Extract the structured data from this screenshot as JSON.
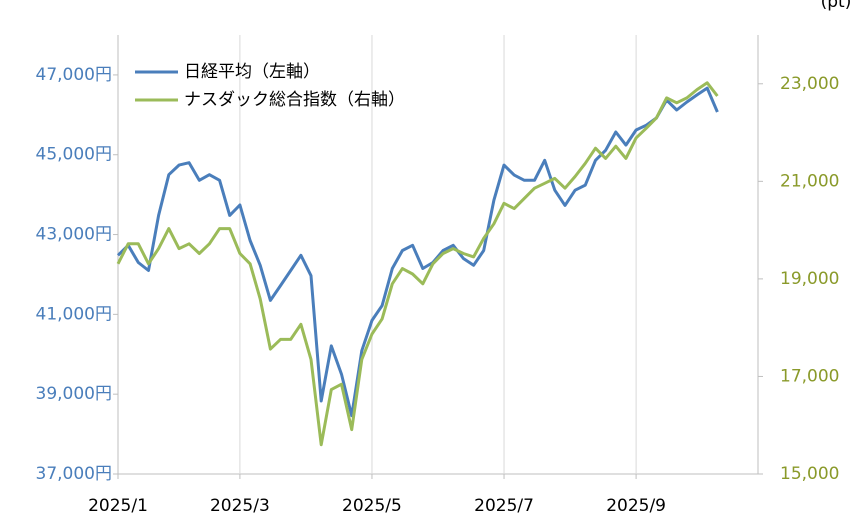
{
  "chart_data": {
    "type": "line",
    "y2_label": "(pt)",
    "categories": [
      "2025/1",
      null,
      null,
      null,
      null,
      null,
      null,
      null,
      null,
      null,
      null,
      null,
      "2025/3",
      null,
      null,
      null,
      null,
      null,
      null,
      null,
      null,
      null,
      null,
      null,
      null,
      "2025/5",
      null,
      null,
      null,
      null,
      null,
      null,
      null,
      null,
      null,
      null,
      null,
      null,
      "2025/7",
      null,
      null,
      null,
      null,
      null,
      null,
      null,
      null,
      null,
      null,
      null,
      null,
      "2025/9",
      null,
      null,
      null,
      null,
      null,
      null,
      null,
      null
    ],
    "series": [
      {
        "name": "日経平均（左軸）",
        "color": "#4a7ebb",
        "axis": "y",
        "values": [
          42480,
          42730,
          42300,
          42100,
          43480,
          44500,
          44740,
          44800,
          44360,
          44500,
          44360,
          43480,
          43740,
          42850,
          42230,
          41350,
          41720,
          42100,
          42480,
          41970,
          38830,
          40210,
          39500,
          38460,
          40090,
          40850,
          41220,
          42150,
          42600,
          42730,
          42150,
          42300,
          42600,
          42730,
          42400,
          42230,
          42600,
          43860,
          44740,
          44490,
          44360,
          44360,
          44860,
          44110,
          43730,
          44110,
          44240,
          44860,
          45110,
          45570,
          45240,
          45620,
          45740,
          45920,
          46370,
          46120,
          46320,
          46500,
          46670,
          46070
        ]
      },
      {
        "name": "ナスダック総合指数（右軸）",
        "color": "#9bbb59",
        "axis": "y2",
        "values": [
          19310,
          19720,
          19720,
          19310,
          19620,
          20030,
          19620,
          19720,
          19520,
          19720,
          20030,
          20030,
          19520,
          19310,
          18590,
          17560,
          17760,
          17760,
          18070,
          17350,
          15600,
          16730,
          16840,
          15910,
          17350,
          17870,
          18180,
          18900,
          19210,
          19100,
          18900,
          19310,
          19520,
          19620,
          19520,
          19450,
          19830,
          20130,
          20550,
          20440,
          20650,
          20860,
          20960,
          21060,
          20860,
          21100,
          21370,
          21680,
          21470,
          21720,
          21470,
          21890,
          22090,
          22300,
          22710,
          22610,
          22710,
          22880,
          23020,
          22750
        ]
      }
    ],
    "ylim": [
      37000,
      48000
    ],
    "yticks": [
      {
        "value": 37000,
        "label": "37,000円"
      },
      {
        "value": 39000,
        "label": "39,000円"
      },
      {
        "value": 41000,
        "label": "41,000円"
      },
      {
        "value": 43000,
        "label": "43,000円"
      },
      {
        "value": 45000,
        "label": "45,000円"
      },
      {
        "value": 47000,
        "label": "47,000円"
      }
    ],
    "y_color": "#4a7ebb",
    "y2lim": [
      15000,
      24000
    ],
    "y2ticks": [
      {
        "value": 15000,
        "label": "15,000"
      },
      {
        "value": 17000,
        "label": "17,000"
      },
      {
        "value": 19000,
        "label": "19,000"
      },
      {
        "value": 21000,
        "label": "21,000"
      },
      {
        "value": 23000,
        "label": "23,000"
      }
    ],
    "y2_color": "#8a9a2a",
    "xgrid": true,
    "legend": "top-left"
  }
}
